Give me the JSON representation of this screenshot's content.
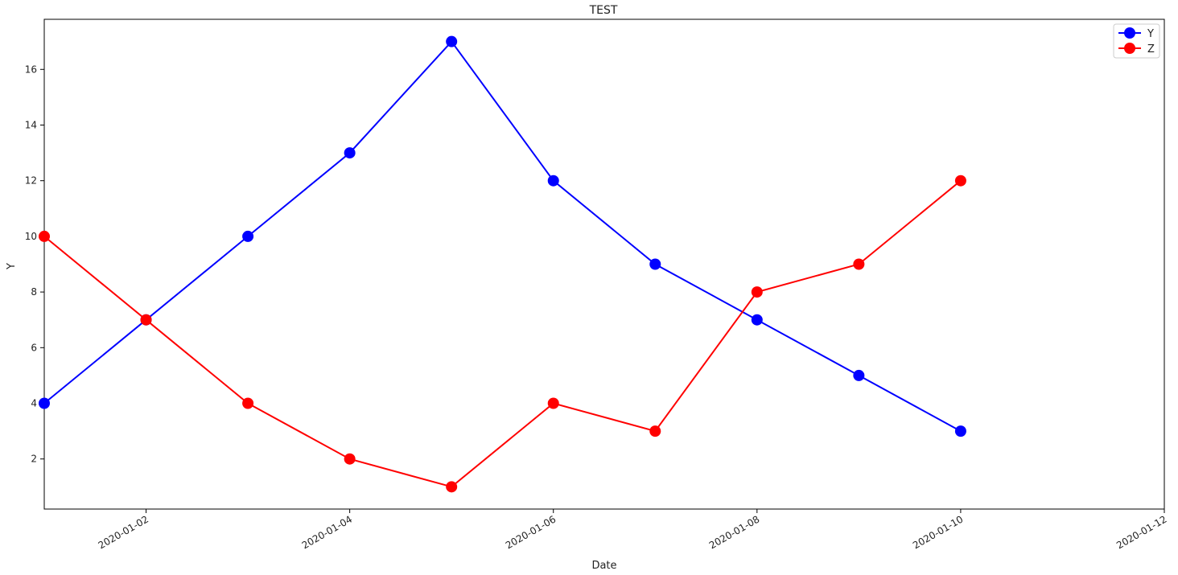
{
  "chart_data": {
    "type": "line",
    "title": "TEST",
    "xlabel": "Date",
    "ylabel": "Y",
    "x_type": "date",
    "xlim": [
      "2020-01-01",
      "2020-01-12"
    ],
    "ylim": [
      0.2,
      17.8
    ],
    "x_ticks": [
      "2020-01-02",
      "2020-01-04",
      "2020-01-06",
      "2020-01-08",
      "2020-01-10",
      "2020-01-12"
    ],
    "y_ticks": [
      2,
      4,
      6,
      8,
      10,
      12,
      14,
      16
    ],
    "grid": false,
    "legend_position": "top-right",
    "x": [
      "2020-01-01",
      "2020-01-02",
      "2020-01-03",
      "2020-01-04",
      "2020-01-05",
      "2020-01-06",
      "2020-01-07",
      "2020-01-08",
      "2020-01-09",
      "2020-01-10"
    ],
    "series": [
      {
        "name": "Y",
        "color": "#0000ff",
        "values": [
          4,
          7,
          10,
          13,
          17,
          12,
          9,
          7,
          5,
          3
        ]
      },
      {
        "name": "Z",
        "color": "#ff0000",
        "values": [
          10,
          7,
          4,
          2,
          1,
          4,
          3,
          8,
          9,
          12
        ]
      }
    ]
  }
}
